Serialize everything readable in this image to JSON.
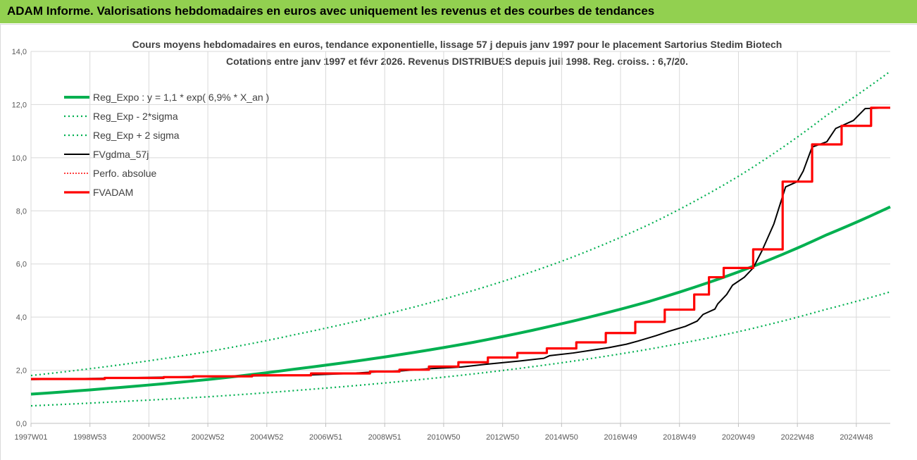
{
  "banner": {
    "title": "ADAM Informe. Valorisations hebdomadaires en euros avec uniquement les revenus et des courbes de tendances"
  },
  "chart_data": {
    "type": "line",
    "title_line1": "Cours moyens hebdomadaires en euros, tendance exponentielle, lissage 57 j depuis janv 1997 pour le placement Sartorius Stedim Biotech",
    "title_line2": "Cotations entre janv 1997 et févr 2026. Revenus DISTRIBUES depuis juil 1998. Reg. croiss. : 6,7/20.",
    "ylim": [
      0,
      14
    ],
    "y_ticks": [
      "0,0",
      "2,0",
      "4,0",
      "6,0",
      "8,0",
      "10,0",
      "12,0",
      "14,0"
    ],
    "x_range_years": [
      1997.0,
      2026.15
    ],
    "x_ticks": [
      {
        "label": "1997W01",
        "year": 1997.0
      },
      {
        "label": "1998W53",
        "year": 1999.0
      },
      {
        "label": "2000W52",
        "year": 2001.0
      },
      {
        "label": "2002W52",
        "year": 2003.0
      },
      {
        "label": "2004W52",
        "year": 2005.0
      },
      {
        "label": "2006W51",
        "year": 2007.0
      },
      {
        "label": "2008W51",
        "year": 2009.0
      },
      {
        "label": "2010W50",
        "year": 2011.0
      },
      {
        "label": "2012W50",
        "year": 2013.0
      },
      {
        "label": "2014W50",
        "year": 2015.0
      },
      {
        "label": "2016W49",
        "year": 2017.0
      },
      {
        "label": "2018W49",
        "year": 2019.0
      },
      {
        "label": "2020W49",
        "year": 2021.0
      },
      {
        "label": "2022W48",
        "year": 2023.0
      },
      {
        "label": "2024W48",
        "year": 2025.0
      }
    ],
    "legend_position": "top-left",
    "series": [
      {
        "name": "Reg_Expo : y = 1,1 * exp( 6,9% *  X_an )",
        "color": "#00b050",
        "style": "solid-thick",
        "x": [
          1997,
          2000,
          2003,
          2006,
          2009,
          2012,
          2015,
          2018,
          2021,
          2024,
          2026.15
        ],
        "y": [
          1.1,
          1.35,
          1.65,
          2.05,
          2.5,
          3.05,
          3.75,
          4.6,
          5.7,
          7.1,
          8.15
        ]
      },
      {
        "name": "Reg_Exp - 2*sigma",
        "color": "#00b050",
        "style": "dotted",
        "x": [
          1997,
          2000,
          2003,
          2006,
          2009,
          2012,
          2015,
          2018,
          2021,
          2024,
          2026.15
        ],
        "y": [
          0.66,
          0.82,
          1.0,
          1.24,
          1.52,
          1.86,
          2.28,
          2.8,
          3.45,
          4.3,
          4.95
        ]
      },
      {
        "name": "Reg_Exp + 2 sigma",
        "color": "#00b050",
        "style": "dotted",
        "x": [
          1997,
          2000,
          2003,
          2006,
          2009,
          2012,
          2015,
          2018,
          2021,
          2024,
          2026.15
        ],
        "y": [
          1.8,
          2.2,
          2.7,
          3.35,
          4.1,
          5.0,
          6.1,
          7.5,
          9.3,
          11.6,
          13.25
        ]
      },
      {
        "name": "FVgdma_57j",
        "color": "#000000",
        "style": "solid-thin",
        "x": [
          1997.0,
          1999.6,
          2000.4,
          2001.6,
          2002.4,
          2005.5,
          2006.4,
          2007.6,
          2008.4,
          2009.6,
          2010.4,
          2011.6,
          2012.4,
          2013.6,
          2014.4,
          2014.6,
          2015.4,
          2016.0,
          2016.6,
          2017.2,
          2017.6,
          2018.2,
          2018.6,
          2019.2,
          2019.6,
          2019.8,
          2020.2,
          2020.3,
          2020.6,
          2020.8,
          2021.2,
          2021.5,
          2021.8,
          2022.2,
          2022.6,
          2023.0,
          2023.2,
          2023.5,
          2024.0,
          2024.3,
          2024.9,
          2025.3,
          2026.15
        ],
        "y": [
          1.65,
          1.7,
          1.72,
          1.74,
          1.76,
          1.8,
          1.82,
          1.87,
          1.92,
          1.98,
          2.05,
          2.12,
          2.22,
          2.35,
          2.45,
          2.55,
          2.65,
          2.75,
          2.85,
          2.98,
          3.1,
          3.3,
          3.45,
          3.65,
          3.85,
          4.1,
          4.3,
          4.5,
          4.85,
          5.2,
          5.5,
          5.85,
          6.5,
          7.5,
          8.9,
          9.1,
          9.5,
          10.4,
          10.6,
          11.1,
          11.4,
          11.85,
          11.88
        ]
      },
      {
        "name": "Perfo. absolue",
        "color": "#ff0000",
        "style": "dotted-thin",
        "x": [],
        "y": []
      },
      {
        "name": "FVADAM",
        "color": "#ff0000",
        "style": "step-thick",
        "x": [
          1997.0,
          1999.5,
          2001.5,
          2002.5,
          2004.5,
          2006.5,
          2008.5,
          2009.5,
          2010.5,
          2011.5,
          2012.5,
          2013.5,
          2014.5,
          2015.5,
          2016.5,
          2017.5,
          2018.5,
          2019.5,
          2020.0,
          2020.5,
          2021.5,
          2022.5,
          2023.5,
          2024.5,
          2025.5,
          2026.15
        ],
        "y": [
          1.67,
          1.71,
          1.74,
          1.77,
          1.81,
          1.88,
          1.95,
          2.02,
          2.14,
          2.3,
          2.48,
          2.65,
          2.82,
          3.05,
          3.4,
          3.82,
          4.28,
          4.85,
          5.5,
          5.85,
          6.55,
          9.1,
          10.5,
          11.2,
          11.88,
          11.88
        ]
      }
    ]
  }
}
